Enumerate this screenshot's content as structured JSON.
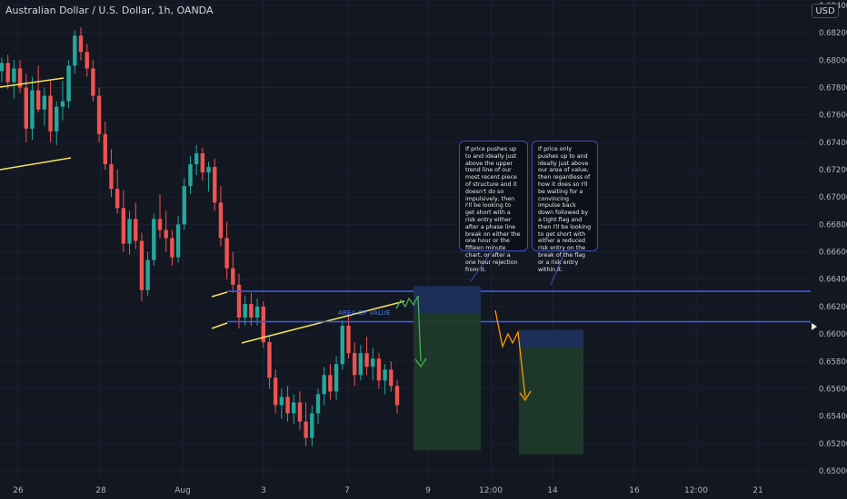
{
  "header": {
    "title": "Australian Dollar / U.S. Dollar, 1h, OANDA",
    "currency_button": "USD"
  },
  "annotations": {
    "area_of_value_label": "AREA OF VALUE",
    "callout_1": "If price pushes up to and ideally just above the upper trend line of our most recent piece of structure and it doesn't do so impulsively, then I'll be looking to get short with a risk entry either after a phase line break on either the one hour or the fifteen minute chart, or after a one hour rejection from it.",
    "callout_2": "If price only pushes up to and ideally just above our area of value, then regardless of how it does so I'll be waiting for a convincing impulse back down followed by a tight flag and then I'll be looking to get short with either a reduced risk entry on the break of the flag or a risk entry within it."
  },
  "colors": {
    "background": "#131722",
    "bull_candle": "#26a69a",
    "bear_candle": "#ef5350",
    "trendline": "#f5e15b",
    "zone_line": "#3d5bd9",
    "path_green": "#4caf50",
    "path_orange": "#ff9800",
    "target_fill": "#1e3a2a",
    "stop_fill": "#1e2f5c",
    "axis_text": "#b2b5be"
  },
  "chart_data": {
    "type": "candlestick",
    "symbol": "Australian Dollar / U.S. Dollar",
    "timeframe": "1h",
    "source": "OANDA",
    "currency": "USD",
    "y_ticks": [
      "0.68400",
      "0.68200",
      "0.68000",
      "0.67800",
      "0.67600",
      "0.67400",
      "0.67200",
      "0.67000",
      "0.66800",
      "0.66600",
      "0.66400",
      "0.66200",
      "0.66000",
      "0.65800",
      "0.65600",
      "0.65400",
      "0.65200",
      "0.65000"
    ],
    "ylim": [
      0.6494,
      0.6844
    ],
    "x_ticks": [
      "26",
      "28",
      "Aug",
      "3",
      "7",
      "9",
      "12:00",
      "14",
      "16",
      "12:00",
      "21"
    ],
    "candles": [
      {
        "t": 0,
        "o": 0.6792,
        "h": 0.6802,
        "l": 0.6784,
        "c": 0.6798
      },
      {
        "t": 1,
        "o": 0.6798,
        "h": 0.6804,
        "l": 0.6779,
        "c": 0.6784
      },
      {
        "t": 2,
        "o": 0.6784,
        "h": 0.68,
        "l": 0.6772,
        "c": 0.6794
      },
      {
        "t": 3,
        "o": 0.6794,
        "h": 0.68,
        "l": 0.6776,
        "c": 0.678
      },
      {
        "t": 4,
        "o": 0.678,
        "h": 0.679,
        "l": 0.674,
        "c": 0.675
      },
      {
        "t": 5,
        "o": 0.675,
        "h": 0.6788,
        "l": 0.6742,
        "c": 0.6778
      },
      {
        "t": 6,
        "o": 0.6778,
        "h": 0.6796,
        "l": 0.6762,
        "c": 0.6764
      },
      {
        "t": 7,
        "o": 0.6764,
        "h": 0.678,
        "l": 0.6752,
        "c": 0.6774
      },
      {
        "t": 8,
        "o": 0.6774,
        "h": 0.6785,
        "l": 0.674,
        "c": 0.6748
      },
      {
        "t": 9,
        "o": 0.6748,
        "h": 0.677,
        "l": 0.6738,
        "c": 0.6766
      },
      {
        "t": 10,
        "o": 0.6766,
        "h": 0.6785,
        "l": 0.6756,
        "c": 0.677
      },
      {
        "t": 11,
        "o": 0.677,
        "h": 0.68,
        "l": 0.6765,
        "c": 0.6796
      },
      {
        "t": 12,
        "o": 0.6796,
        "h": 0.6822,
        "l": 0.679,
        "c": 0.6818
      },
      {
        "t": 13,
        "o": 0.6818,
        "h": 0.6824,
        "l": 0.68,
        "c": 0.6806
      },
      {
        "t": 14,
        "o": 0.6806,
        "h": 0.6812,
        "l": 0.6788,
        "c": 0.6794
      },
      {
        "t": 15,
        "o": 0.6794,
        "h": 0.68,
        "l": 0.677,
        "c": 0.6774
      },
      {
        "t": 16,
        "o": 0.6774,
        "h": 0.678,
        "l": 0.674,
        "c": 0.6746
      },
      {
        "t": 17,
        "o": 0.6746,
        "h": 0.6755,
        "l": 0.672,
        "c": 0.6724
      },
      {
        "t": 18,
        "o": 0.6724,
        "h": 0.6735,
        "l": 0.67,
        "c": 0.6706
      },
      {
        "t": 19,
        "o": 0.6706,
        "h": 0.672,
        "l": 0.6688,
        "c": 0.6692
      },
      {
        "t": 20,
        "o": 0.6692,
        "h": 0.6705,
        "l": 0.666,
        "c": 0.6666
      },
      {
        "t": 21,
        "o": 0.6666,
        "h": 0.669,
        "l": 0.6658,
        "c": 0.6684
      },
      {
        "t": 22,
        "o": 0.6684,
        "h": 0.6696,
        "l": 0.6662,
        "c": 0.6668
      },
      {
        "t": 23,
        "o": 0.6668,
        "h": 0.6674,
        "l": 0.6624,
        "c": 0.6632
      },
      {
        "t": 24,
        "o": 0.6632,
        "h": 0.666,
        "l": 0.6628,
        "c": 0.6654
      },
      {
        "t": 25,
        "o": 0.6654,
        "h": 0.6688,
        "l": 0.665,
        "c": 0.6684
      },
      {
        "t": 26,
        "o": 0.6684,
        "h": 0.6702,
        "l": 0.667,
        "c": 0.6676
      },
      {
        "t": 27,
        "o": 0.6676,
        "h": 0.669,
        "l": 0.666,
        "c": 0.667
      },
      {
        "t": 28,
        "o": 0.667,
        "h": 0.6676,
        "l": 0.665,
        "c": 0.6656
      },
      {
        "t": 29,
        "o": 0.6656,
        "h": 0.6686,
        "l": 0.6652,
        "c": 0.668
      },
      {
        "t": 30,
        "o": 0.668,
        "h": 0.6714,
        "l": 0.6676,
        "c": 0.6708
      },
      {
        "t": 31,
        "o": 0.6708,
        "h": 0.673,
        "l": 0.6702,
        "c": 0.6724
      },
      {
        "t": 32,
        "o": 0.6724,
        "h": 0.6738,
        "l": 0.6716,
        "c": 0.6732
      },
      {
        "t": 33,
        "o": 0.6732,
        "h": 0.6736,
        "l": 0.6712,
        "c": 0.6718
      },
      {
        "t": 34,
        "o": 0.6718,
        "h": 0.6726,
        "l": 0.6704,
        "c": 0.6722
      },
      {
        "t": 35,
        "o": 0.6722,
        "h": 0.6728,
        "l": 0.669,
        "c": 0.6696
      },
      {
        "t": 36,
        "o": 0.6696,
        "h": 0.6708,
        "l": 0.6664,
        "c": 0.667
      },
      {
        "t": 37,
        "o": 0.667,
        "h": 0.6682,
        "l": 0.664,
        "c": 0.6648
      },
      {
        "t": 38,
        "o": 0.6648,
        "h": 0.666,
        "l": 0.663,
        "c": 0.6636
      },
      {
        "t": 39,
        "o": 0.6636,
        "h": 0.6644,
        "l": 0.6604,
        "c": 0.6612
      },
      {
        "t": 40,
        "o": 0.6612,
        "h": 0.6628,
        "l": 0.6606,
        "c": 0.6622
      },
      {
        "t": 41,
        "o": 0.6622,
        "h": 0.663,
        "l": 0.6606,
        "c": 0.6612
      },
      {
        "t": 42,
        "o": 0.6612,
        "h": 0.6626,
        "l": 0.6606,
        "c": 0.662
      },
      {
        "t": 43,
        "o": 0.662,
        "h": 0.6624,
        "l": 0.659,
        "c": 0.6594
      },
      {
        "t": 44,
        "o": 0.6594,
        "h": 0.6598,
        "l": 0.656,
        "c": 0.6568
      },
      {
        "t": 45,
        "o": 0.6568,
        "h": 0.6574,
        "l": 0.6542,
        "c": 0.6548
      },
      {
        "t": 46,
        "o": 0.6548,
        "h": 0.656,
        "l": 0.6538,
        "c": 0.6554
      },
      {
        "t": 47,
        "o": 0.6554,
        "h": 0.6562,
        "l": 0.6536,
        "c": 0.6542
      },
      {
        "t": 48,
        "o": 0.6542,
        "h": 0.6556,
        "l": 0.6534,
        "c": 0.655
      },
      {
        "t": 49,
        "o": 0.655,
        "h": 0.6558,
        "l": 0.653,
        "c": 0.6536
      },
      {
        "t": 50,
        "o": 0.6536,
        "h": 0.655,
        "l": 0.6518,
        "c": 0.6524
      },
      {
        "t": 51,
        "o": 0.6524,
        "h": 0.6548,
        "l": 0.6518,
        "c": 0.6542
      },
      {
        "t": 52,
        "o": 0.6542,
        "h": 0.656,
        "l": 0.6534,
        "c": 0.6556
      },
      {
        "t": 53,
        "o": 0.6556,
        "h": 0.6576,
        "l": 0.6548,
        "c": 0.657
      },
      {
        "t": 54,
        "o": 0.657,
        "h": 0.6578,
        "l": 0.6552,
        "c": 0.6558
      },
      {
        "t": 55,
        "o": 0.6558,
        "h": 0.6584,
        "l": 0.6552,
        "c": 0.6578
      },
      {
        "t": 56,
        "o": 0.6578,
        "h": 0.661,
        "l": 0.6574,
        "c": 0.6606
      },
      {
        "t": 57,
        "o": 0.6606,
        "h": 0.6614,
        "l": 0.6582,
        "c": 0.6586
      },
      {
        "t": 58,
        "o": 0.6586,
        "h": 0.6594,
        "l": 0.6562,
        "c": 0.657
      },
      {
        "t": 59,
        "o": 0.657,
        "h": 0.6592,
        "l": 0.6566,
        "c": 0.6586
      },
      {
        "t": 60,
        "o": 0.6586,
        "h": 0.6598,
        "l": 0.657,
        "c": 0.6576
      },
      {
        "t": 61,
        "o": 0.6576,
        "h": 0.659,
        "l": 0.6566,
        "c": 0.6582
      },
      {
        "t": 62,
        "o": 0.6582,
        "h": 0.6586,
        "l": 0.656,
        "c": 0.6566
      },
      {
        "t": 63,
        "o": 0.6566,
        "h": 0.6578,
        "l": 0.6556,
        "c": 0.6574
      },
      {
        "t": 64,
        "o": 0.6574,
        "h": 0.658,
        "l": 0.6558,
        "c": 0.6562
      },
      {
        "t": 65,
        "o": 0.6562,
        "h": 0.6566,
        "l": 0.6542,
        "c": 0.6548
      }
    ],
    "levels": {
      "area_of_value_top": 0.66312,
      "area_of_value_bottom": 0.6609
    },
    "trade_setups": [
      {
        "entry": 0.6615,
        "stop": 0.6635,
        "target": 0.6515
      },
      {
        "entry": 0.659,
        "stop": 0.6603,
        "target": 0.6512
      }
    ]
  }
}
